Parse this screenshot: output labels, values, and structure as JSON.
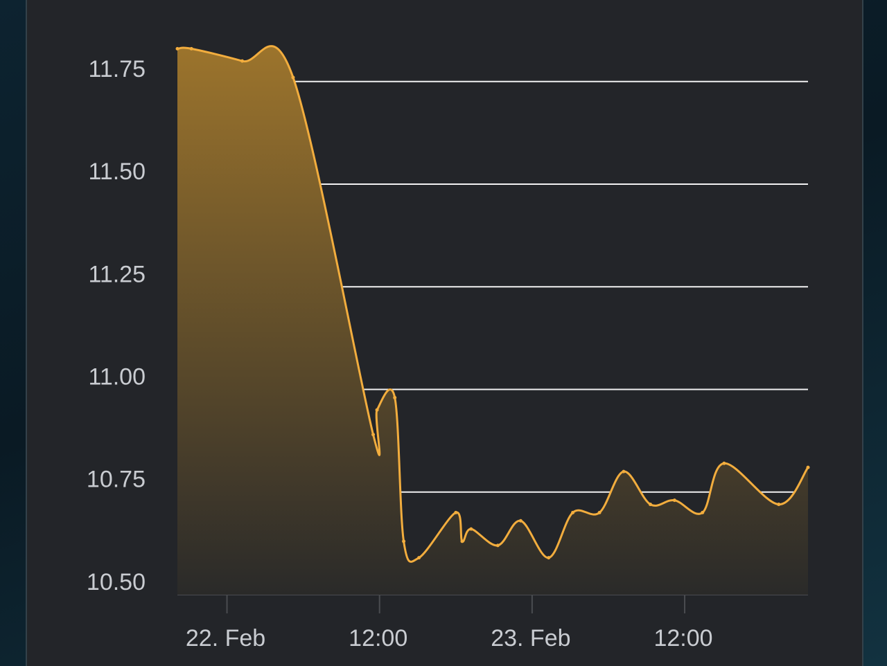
{
  "chart_data": {
    "type": "area",
    "x": [
      -3.9,
      -2.8,
      1.2,
      5.2,
      11.5,
      11.8,
      13.2,
      13.9,
      15.1,
      18.0,
      18.5,
      19.2,
      21.3,
      23.1,
      25.3,
      27.2,
      29.3,
      31.2,
      33.3,
      35.2,
      37.4,
      39.1,
      43.4,
      45.7
    ],
    "values": [
      11.83,
      11.83,
      11.8,
      11.76,
      10.89,
      10.95,
      10.98,
      10.63,
      10.59,
      10.7,
      10.63,
      10.66,
      10.62,
      10.68,
      10.59,
      10.7,
      10.7,
      10.8,
      10.72,
      10.73,
      10.7,
      10.82,
      10.72,
      10.81
    ],
    "color": "#f2ad3e",
    "xlim": [
      -3.9,
      45.7
    ],
    "xticks": [
      {
        "value": 0,
        "label": "22. Feb"
      },
      {
        "value": 12,
        "label": "12:00"
      },
      {
        "value": 24,
        "label": "23. Feb"
      },
      {
        "value": 36,
        "label": "12:00"
      }
    ],
    "ylim": [
      10.5,
      11.85
    ],
    "yticks": [
      {
        "value": 10.5,
        "label": "10.50"
      },
      10.75,
      {
        "value": 11,
        "label": "11.00"
      },
      11.25,
      {
        "value": 11.5,
        "label": "11.50"
      },
      11.75
    ],
    "grid": true
  }
}
